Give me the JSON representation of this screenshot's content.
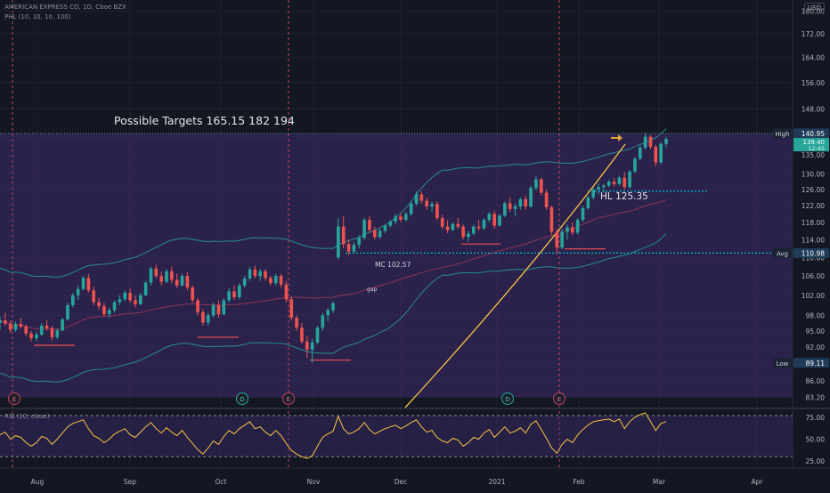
{
  "header": {
    "symbol_line": "AMERICAN EXPRESS CO, 1D, Cboe BZX",
    "indicator_line": "PHL (10, 10, 10, 100)",
    "currency": "USD"
  },
  "annotations": {
    "targets": "Possible Targets  165.15   182  194",
    "hl": "HL 125.35",
    "mc": "MC 102.57",
    "gap": "gap"
  },
  "events": [
    "E",
    "D",
    "E",
    "D",
    "E"
  ],
  "colors": {
    "background": "#131722",
    "up": "#26a69a",
    "down": "#ef5350",
    "band": "#2962ff",
    "curve": "#f7c548",
    "hl_line": "#00bcd4"
  },
  "chart_data": [
    {
      "type": "candlestick",
      "title": "AMERICAN EXPRESS CO, 1D, Cboe BZX",
      "x_ticks": [
        "Aug",
        "Sep",
        "Oct",
        "Nov",
        "Dec",
        "2021",
        "Feb",
        "Mar",
        "Apr"
      ],
      "y_ticks": [
        83.2,
        86.0,
        89.0,
        92.0,
        95.0,
        98.0,
        102.0,
        106.0,
        110.0,
        114.0,
        118.0,
        122.0,
        126.0,
        130.0,
        135.0,
        140.0,
        148.0,
        156.0,
        164.0,
        172.0,
        180.0
      ],
      "y_scale": "log",
      "ylim": [
        81.5,
        184
      ],
      "price_labels": [
        {
          "label": "High",
          "value": 140.95
        },
        {
          "label": "Avg",
          "value": 110.98
        },
        {
          "label": "Low",
          "value": 89.11
        },
        {
          "label": "",
          "value": 139.4
        },
        {
          "label": "",
          "value": "12:45"
        }
      ],
      "series": [
        {
          "name": "AXP",
          "points": [
            [
              96.5,
              97.8,
              95.2,
              97.0
            ],
            [
              97.0,
              98.5,
              96.0,
              96.4
            ],
            [
              96.4,
              97.0,
              94.6,
              95.2
            ],
            [
              95.2,
              96.8,
              94.8,
              96.3
            ],
            [
              96.3,
              97.5,
              95.5,
              95.8
            ],
            [
              95.8,
              96.2,
              94.0,
              94.5
            ],
            [
              94.5,
              95.0,
              93.0,
              93.6
            ],
            [
              93.6,
              94.8,
              93.1,
              94.3
            ],
            [
              94.3,
              96.5,
              94.0,
              96.0
            ],
            [
              96.0,
              97.0,
              95.0,
              95.5
            ],
            [
              95.5,
              96.0,
              93.2,
              93.8
            ],
            [
              93.8,
              95.5,
              93.4,
              95.1
            ],
            [
              95.1,
              97.5,
              94.9,
              97.2
            ],
            [
              97.2,
              100.5,
              97.0,
              100.0
            ],
            [
              100.0,
              102.5,
              99.5,
              102.0
            ],
            [
              102.0,
              104.0,
              101.0,
              103.3
            ],
            [
              103.3,
              106.0,
              103.0,
              105.6
            ],
            [
              105.6,
              106.5,
              102.5,
              103.0
            ],
            [
              103.0,
              103.8,
              100.0,
              100.6
            ],
            [
              100.6,
              101.5,
              99.0,
              99.8
            ],
            [
              99.8,
              100.5,
              97.8,
              98.2
            ],
            [
              98.2,
              99.5,
              97.5,
              99.0
            ],
            [
              99.0,
              101.0,
              98.5,
              100.6
            ],
            [
              100.6,
              102.0,
              100.0,
              101.2
            ],
            [
              101.2,
              103.0,
              100.8,
              102.5
            ],
            [
              102.5,
              103.5,
              100.5,
              101.0
            ],
            [
              101.0,
              102.0,
              99.5,
              100.2
            ],
            [
              100.2,
              102.5,
              100.0,
              102.0
            ],
            [
              102.0,
              105.0,
              101.8,
              104.6
            ],
            [
              104.6,
              108.0,
              104.0,
              107.6
            ],
            [
              107.6,
              108.5,
              105.5,
              106.0
            ],
            [
              106.0,
              107.0,
              104.0,
              104.8
            ],
            [
              104.8,
              107.5,
              104.5,
              107.0
            ],
            [
              107.0,
              108.0,
              104.5,
              105.2
            ],
            [
              105.2,
              106.5,
              103.5,
              104.0
            ],
            [
              104.0,
              106.5,
              103.8,
              106.0
            ],
            [
              106.0,
              106.8,
              103.0,
              103.6
            ],
            [
              103.6,
              104.0,
              100.5,
              101.0
            ],
            [
              101.0,
              101.5,
              98.0,
              98.6
            ],
            [
              98.6,
              99.2,
              96.0,
              96.6
            ],
            [
              96.6,
              98.5,
              96.0,
              98.0
            ],
            [
              98.0,
              100.5,
              97.5,
              100.0
            ],
            [
              100.0,
              101.0,
              97.5,
              98.2
            ],
            [
              98.2,
              101.5,
              98.0,
              101.0
            ],
            [
              101.0,
              103.5,
              100.5,
              102.8
            ],
            [
              102.8,
              104.0,
              101.0,
              101.6
            ],
            [
              101.6,
              104.5,
              101.2,
              104.0
            ],
            [
              104.0,
              106.0,
              103.5,
              105.5
            ],
            [
              105.5,
              108.0,
              105.0,
              107.4
            ],
            [
              107.4,
              108.2,
              105.5,
              106.0
            ],
            [
              106.0,
              107.5,
              105.0,
              107.0
            ],
            [
              107.0,
              107.5,
              105.0,
              105.6
            ],
            [
              105.6,
              106.0,
              104.0,
              104.5
            ],
            [
              104.5,
              106.5,
              104.0,
              106.0
            ],
            [
              106.0,
              106.5,
              103.5,
              104.2
            ],
            [
              104.2,
              105.0,
              100.5,
              101.2
            ],
            [
              101.2,
              101.8,
              97.0,
              97.5
            ],
            [
              97.5,
              98.0,
              95.0,
              95.6
            ],
            [
              95.6,
              96.5,
              92.5,
              93.0
            ],
            [
              93.0,
              94.0,
              90.0,
              91.5
            ],
            [
              91.5,
              93.5,
              89.11,
              92.8
            ],
            [
              92.8,
              96.0,
              92.5,
              95.6
            ],
            [
              95.6,
              98.5,
              95.0,
              98.0
            ],
            [
              98.0,
              99.5,
              96.8,
              99.0
            ],
            [
              99.0,
              100.8,
              98.5,
              100.4
            ],
            [
              110.0,
              119.0,
              109.5,
              117.0
            ],
            [
              117.0,
              119.5,
              112.0,
              113.0
            ],
            [
              113.0,
              114.0,
              110.5,
              111.3
            ],
            [
              111.3,
              113.5,
              110.8,
              112.8
            ],
            [
              112.8,
              115.0,
              112.0,
              114.4
            ],
            [
              114.4,
              119.0,
              114.0,
              118.6
            ],
            [
              118.6,
              119.5,
              115.5,
              116.2
            ],
            [
              116.2,
              117.0,
              114.0,
              114.6
            ],
            [
              114.6,
              116.5,
              114.2,
              116.0
            ],
            [
              116.0,
              117.5,
              115.5,
              117.2
            ],
            [
              117.2,
              118.5,
              116.8,
              118.2
            ],
            [
              118.2,
              120.0,
              117.5,
              119.4
            ],
            [
              119.4,
              120.2,
              118.0,
              118.6
            ],
            [
              118.6,
              120.5,
              118.2,
              120.0
            ],
            [
              120.0,
              123.0,
              119.5,
              122.5
            ],
            [
              122.5,
              125.5,
              122.0,
              124.8
            ],
            [
              124.8,
              125.5,
              122.5,
              123.2
            ],
            [
              123.2,
              124.0,
              121.0,
              121.8
            ],
            [
              121.8,
              123.0,
              120.5,
              122.4
            ],
            [
              122.4,
              123.0,
              118.5,
              119.0
            ],
            [
              119.0,
              119.8,
              116.5,
              117.0
            ],
            [
              117.0,
              118.5,
              115.5,
              116.2
            ],
            [
              116.2,
              118.0,
              116.0,
              117.6
            ],
            [
              117.6,
              119.0,
              116.5,
              117.0
            ],
            [
              117.0,
              117.5,
              114.0,
              114.6
            ],
            [
              114.6,
              116.0,
              113.5,
              115.4
            ],
            [
              115.4,
              117.5,
              115.0,
              117.0
            ],
            [
              117.0,
              118.5,
              116.0,
              116.6
            ],
            [
              116.6,
              119.0,
              116.2,
              118.6
            ],
            [
              118.6,
              120.5,
              118.0,
              120.0
            ],
            [
              120.0,
              120.8,
              116.5,
              117.2
            ],
            [
              117.2,
              120.0,
              117.0,
              119.6
            ],
            [
              119.6,
              123.0,
              119.2,
              122.6
            ],
            [
              122.6,
              124.0,
              120.5,
              121.2
            ],
            [
              121.2,
              122.5,
              119.5,
              121.8
            ],
            [
              121.8,
              124.0,
              121.0,
              123.6
            ],
            [
              123.6,
              124.5,
              121.0,
              121.8
            ],
            [
              121.8,
              127.0,
              121.5,
              126.4
            ],
            [
              126.4,
              129.5,
              125.8,
              128.6
            ],
            [
              128.6,
              129.0,
              124.5,
              125.2
            ],
            [
              125.2,
              126.0,
              121.0,
              121.6
            ],
            [
              121.6,
              122.0,
              115.0,
              115.8
            ],
            [
              115.8,
              116.5,
              111.0,
              112.2
            ],
            [
              112.2,
              116.5,
              111.8,
              115.8
            ],
            [
              115.8,
              117.5,
              114.0,
              116.8
            ],
            [
              116.8,
              118.0,
              115.0,
              115.6
            ],
            [
              115.6,
              119.0,
              115.2,
              118.6
            ],
            [
              118.6,
              122.0,
              118.2,
              121.4
            ],
            [
              121.4,
              124.5,
              121.0,
              124.0
            ],
            [
              124.0,
              126.5,
              123.5,
              126.0
            ],
            [
              126.0,
              127.5,
              124.8,
              126.6
            ],
            [
              126.6,
              127.5,
              125.35,
              127.0
            ],
            [
              127.0,
              128.5,
              126.5,
              128.0
            ],
            [
              128.0,
              129.0,
              126.8,
              127.4
            ],
            [
              127.4,
              129.5,
              127.0,
              129.0
            ],
            [
              129.0,
              130.5,
              126.0,
              126.6
            ],
            [
              126.6,
              131.0,
              126.2,
              130.6
            ],
            [
              130.6,
              134.5,
              130.2,
              134.0
            ],
            [
              134.0,
              137.5,
              133.5,
              137.0
            ],
            [
              137.0,
              140.95,
              136.5,
              140.0
            ],
            [
              140.0,
              140.5,
              136.5,
              137.2
            ],
            [
              137.2,
              137.8,
              132.0,
              133.0
            ],
            [
              133.0,
              138.5,
              132.5,
              138.0
            ],
            [
              138.0,
              140.0,
              137.0,
              139.4
            ]
          ]
        }
      ]
    },
    {
      "type": "line",
      "title": "RSI (10, close)",
      "y_ticks": [
        25.0,
        50.0,
        75.0
      ],
      "ylim": [
        18,
        82
      ],
      "x_ticks": [
        "Aug",
        "Sep",
        "Oct",
        "Nov",
        "Dec",
        "2021",
        "Feb",
        "Mar",
        "Apr"
      ],
      "levels": [
        30,
        77
      ],
      "series": [
        {
          "name": "RSI",
          "values": [
            55,
            58,
            50,
            54,
            52,
            46,
            42,
            46,
            53,
            51,
            44,
            50,
            57,
            64,
            68,
            70,
            72,
            62,
            54,
            51,
            46,
            50,
            56,
            59,
            62,
            55,
            52,
            58,
            64,
            69,
            62,
            57,
            63,
            58,
            54,
            60,
            52,
            45,
            38,
            33,
            40,
            48,
            44,
            53,
            60,
            56,
            62,
            66,
            70,
            62,
            64,
            58,
            54,
            60,
            54,
            45,
            37,
            33,
            30,
            28,
            31,
            42,
            52,
            56,
            59,
            76,
            62,
            56,
            58,
            62,
            69,
            61,
            56,
            59,
            62,
            64,
            66,
            62,
            65,
            69,
            72,
            64,
            58,
            60,
            52,
            48,
            46,
            51,
            49,
            42,
            46,
            52,
            50,
            57,
            61,
            52,
            58,
            64,
            57,
            59,
            63,
            57,
            67,
            71,
            61,
            51,
            40,
            34,
            44,
            50,
            46,
            55,
            61,
            66,
            70,
            71,
            72,
            73,
            70,
            73,
            62,
            70,
            75,
            78,
            80,
            70,
            60,
            68,
            70
          ]
        }
      ]
    }
  ]
}
